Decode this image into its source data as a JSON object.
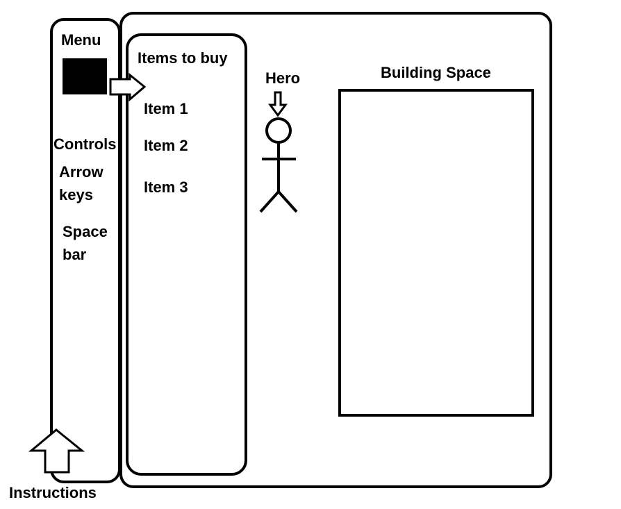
{
  "menu": {
    "title": "Menu",
    "controls_heading": "Controls",
    "controls": {
      "arrow_line1": "Arrow",
      "arrow_line2": "keys",
      "space_line1": "Space",
      "space_line2": "bar"
    }
  },
  "shop": {
    "title": "Items to buy",
    "items": [
      {
        "label": "Item 1"
      },
      {
        "label": "Item 2"
      },
      {
        "label": "Item 3"
      }
    ]
  },
  "hero": {
    "label": "Hero"
  },
  "building": {
    "label": "Building Space"
  },
  "instructions": {
    "label": "Instructions"
  },
  "icons": {
    "menu_button": "black-square-icon",
    "menu_arrow": "arrow-right-icon",
    "hero_pointer": "arrow-down-icon",
    "hero_figure": "stick-figure-icon",
    "instructions_pointer": "arrow-up-icon"
  },
  "colors": {
    "ink": "#000000",
    "paper": "#ffffff"
  }
}
